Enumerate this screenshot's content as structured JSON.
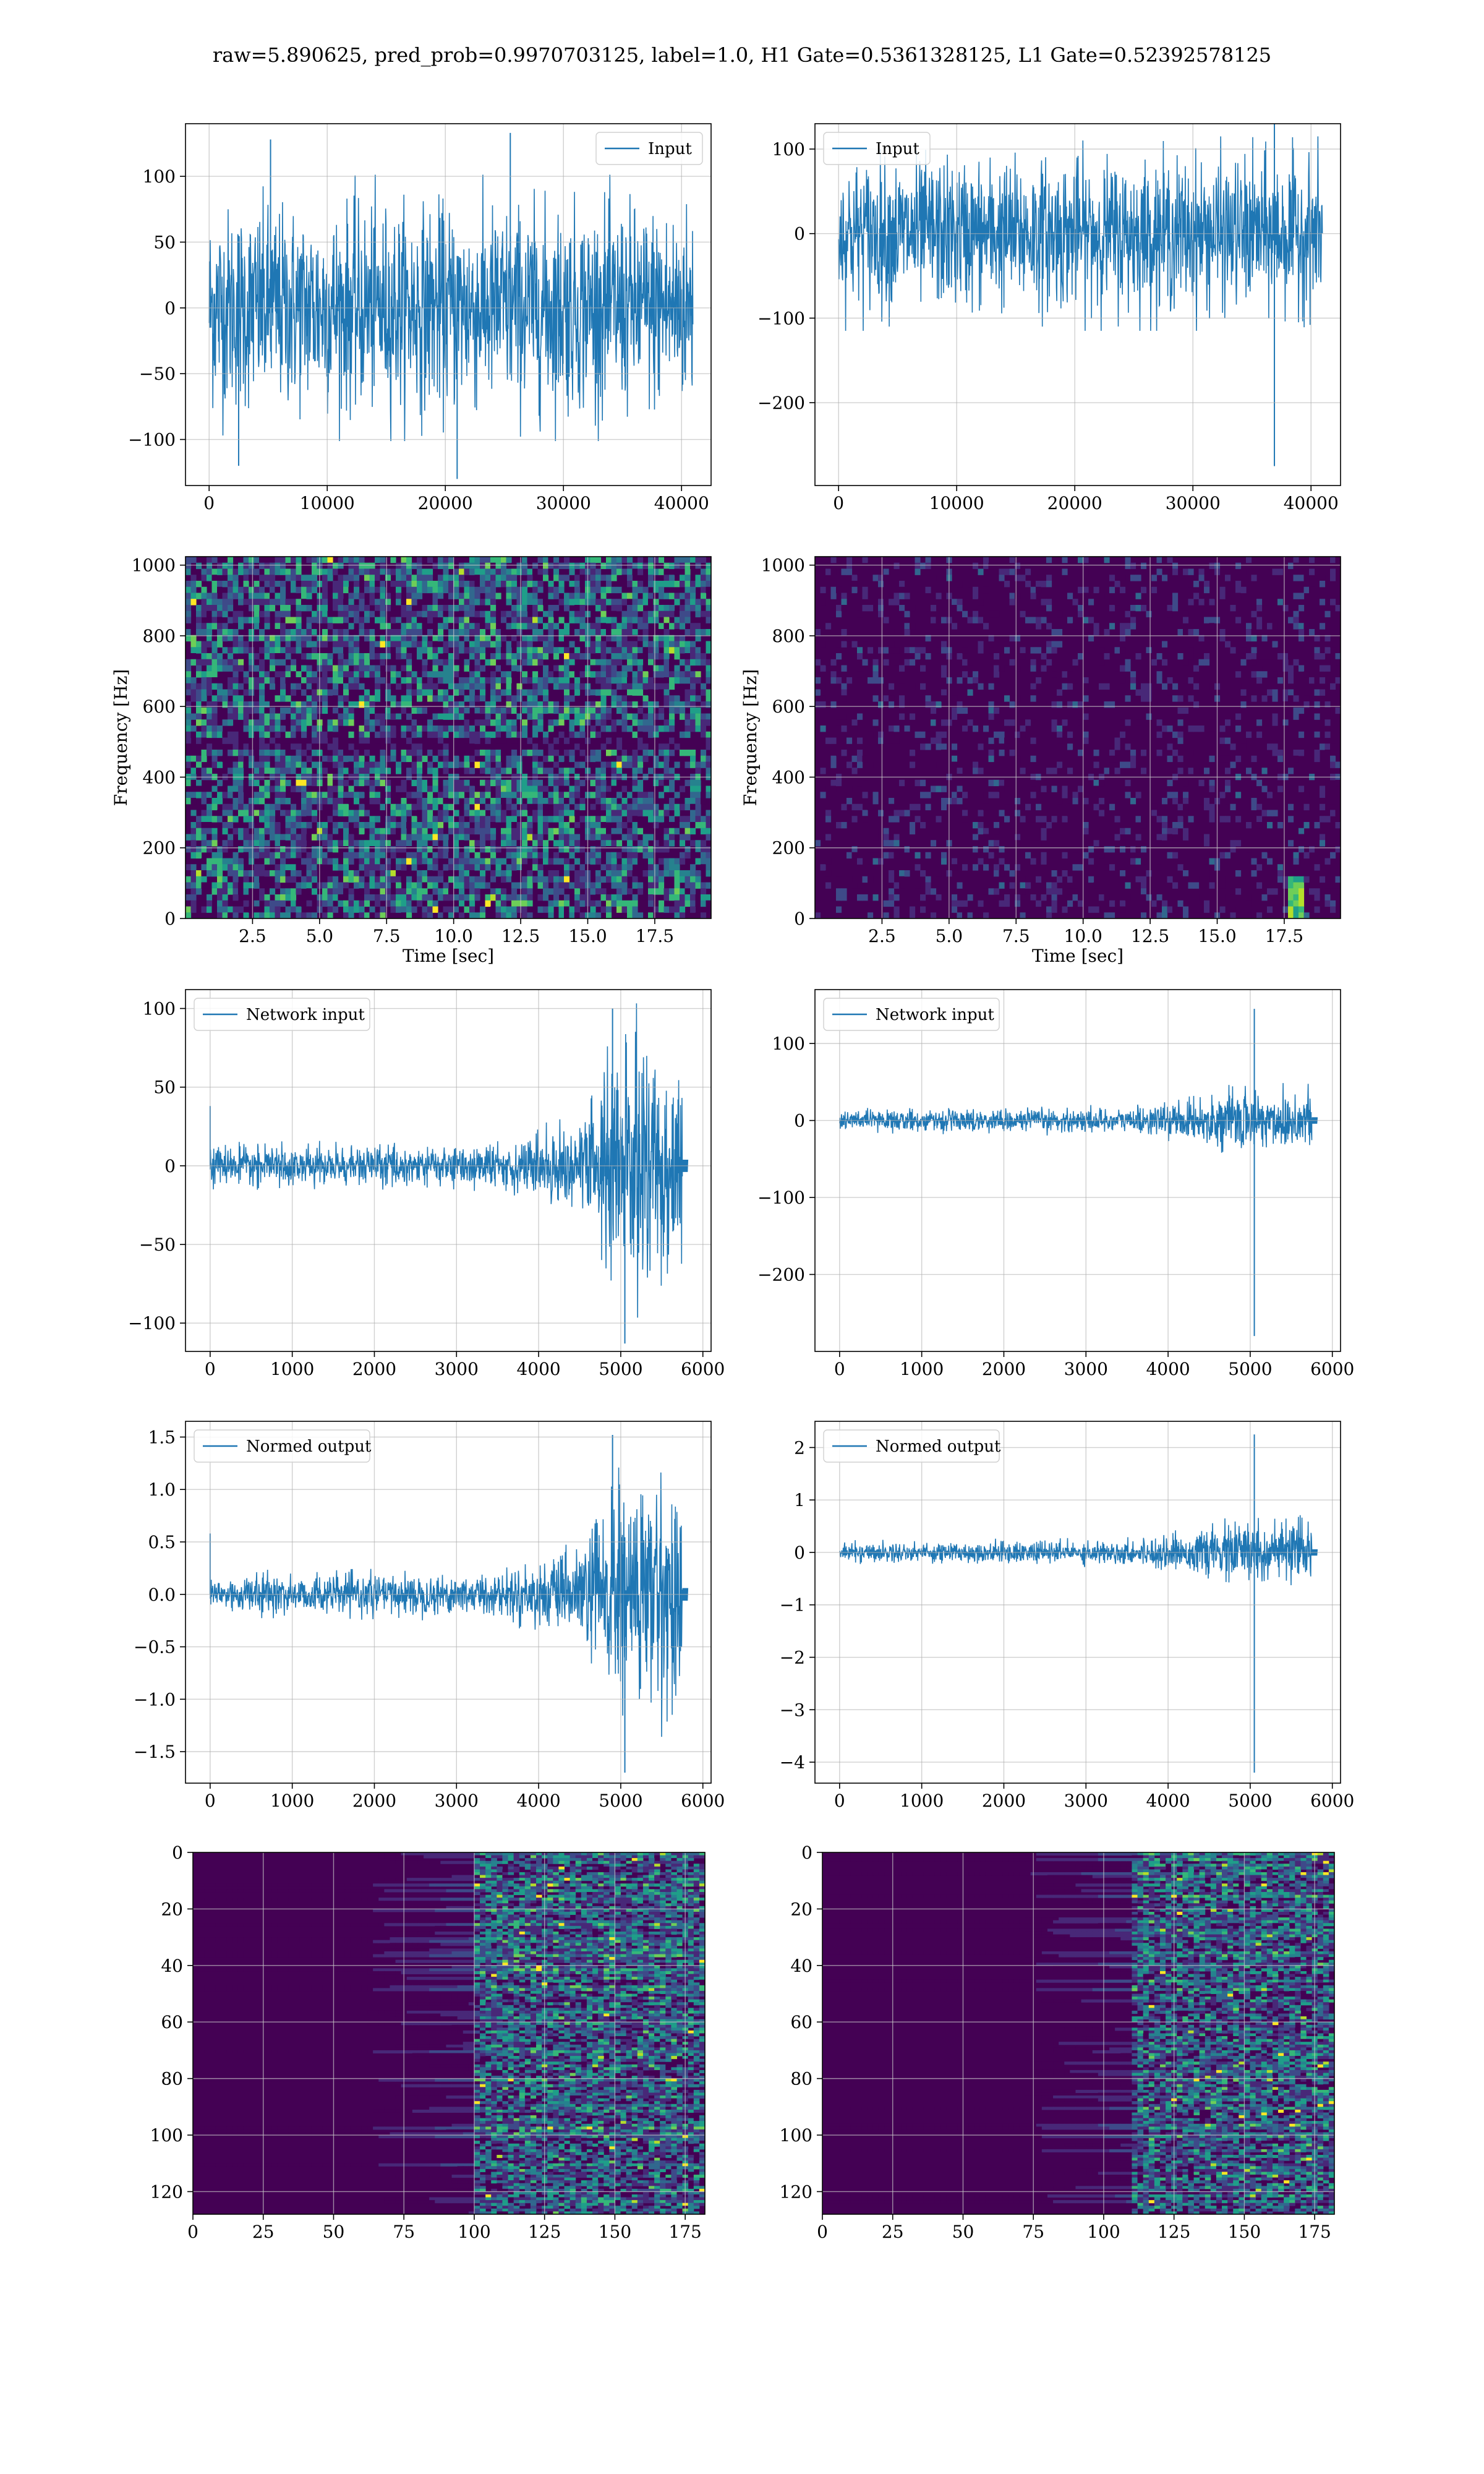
{
  "figure_title": "raw=5.890625, pred_prob=0.9970703125, label=1.0, H1 Gate=0.5361328125, L1 Gate=0.52392578125",
  "colors": {
    "line": "#1f77b4",
    "grid": "#b0b0b0",
    "viridis_low": "#440154",
    "viridis_high": "#fde725"
  },
  "chart_data": [
    {
      "id": "r1c1",
      "type": "line",
      "legend": [
        "Input"
      ],
      "legend_loc": "upper right",
      "xlim": [
        -2000,
        42500
      ],
      "ylim": [
        -135,
        140
      ],
      "xticks": [
        0,
        10000,
        20000,
        30000,
        40000
      ],
      "xticklabels": [
        "0",
        "10000",
        "20000",
        "30000",
        "40000"
      ],
      "yticks": [
        -100,
        -50,
        0,
        50,
        100
      ],
      "yticklabels": [
        "−100",
        "−50",
        "0",
        "50",
        "100"
      ],
      "xlabel": "",
      "ylabel": "",
      "grid": true,
      "signal": {
        "n": 40960,
        "amp": 88,
        "peaks": [
          [
            5200,
            128
          ],
          [
            25500,
            133
          ],
          [
            21000,
            -130
          ],
          [
            2500,
            -120
          ]
        ]
      }
    },
    {
      "id": "r1c2",
      "type": "line",
      "legend": [
        "Input"
      ],
      "legend_loc": "upper left",
      "xlim": [
        -2000,
        42500
      ],
      "ylim": [
        -298,
        130
      ],
      "xticks": [
        0,
        10000,
        20000,
        30000,
        40000
      ],
      "xticklabels": [
        "0",
        "10000",
        "20000",
        "30000",
        "40000"
      ],
      "yticks": [
        -200,
        -100,
        0,
        100
      ],
      "yticklabels": [
        "−200",
        "−100",
        "0",
        "100"
      ],
      "xlabel": "",
      "ylabel": "",
      "grid": true,
      "signal": {
        "n": 40960,
        "amp": 100,
        "peaks": [
          [
            36900,
            140
          ],
          [
            36900,
            -275
          ]
        ]
      }
    },
    {
      "id": "r2c1",
      "type": "heatmap",
      "legend": [],
      "xlim": [
        0,
        19.6
      ],
      "ylim": [
        0,
        1024
      ],
      "xticks": [
        2.5,
        5.0,
        7.5,
        10.0,
        12.5,
        15.0,
        17.5
      ],
      "xticklabels": [
        "2.5",
        "5.0",
        "7.5",
        "10.0",
        "12.5",
        "15.0",
        "17.5"
      ],
      "yticks": [
        0,
        200,
        400,
        600,
        800,
        1000
      ],
      "yticklabels": [
        "0",
        "200",
        "400",
        "600",
        "800",
        "1000"
      ],
      "xlabel": "Time [sec]",
      "ylabel": "Frequency [Hz]",
      "grid": true
    },
    {
      "id": "r2c2",
      "type": "heatmap",
      "legend": [],
      "xlim": [
        0,
        19.6
      ],
      "ylim": [
        0,
        1024
      ],
      "xticks": [
        2.5,
        5.0,
        7.5,
        10.0,
        12.5,
        15.0,
        17.5
      ],
      "xticklabels": [
        "2.5",
        "5.0",
        "7.5",
        "10.0",
        "12.5",
        "15.0",
        "17.5"
      ],
      "yticks": [
        0,
        200,
        400,
        600,
        800,
        1000
      ],
      "yticklabels": [
        "0",
        "200",
        "400",
        "600",
        "800",
        "1000"
      ],
      "xlabel": "Time [sec]",
      "ylabel": "Frequency [Hz]",
      "grid": true,
      "feature": {
        "time": 17.8,
        "freq_range": [
          0,
          120
        ]
      }
    },
    {
      "id": "r3c1",
      "type": "line",
      "legend": [
        "Network input"
      ],
      "legend_loc": "upper left",
      "xlim": [
        -300,
        6100
      ],
      "ylim": [
        -118,
        112
      ],
      "xticks": [
        0,
        1000,
        2000,
        3000,
        4000,
        5000,
        6000
      ],
      "xticklabels": [
        "0",
        "1000",
        "2000",
        "3000",
        "4000",
        "5000",
        "6000"
      ],
      "yticks": [
        -100,
        -50,
        0,
        50,
        100
      ],
      "yticklabels": [
        "−100",
        "−50",
        "0",
        "50",
        "100"
      ],
      "xlabel": "",
      "ylabel": "",
      "grid": true,
      "signal": {
        "n": 5800,
        "amp": 13,
        "end": 5750,
        "envelope": [
          [
            0,
            13
          ],
          [
            3500,
            15
          ],
          [
            4500,
            30
          ],
          [
            4800,
            80
          ],
          [
            5200,
            90
          ],
          [
            5700,
            80
          ]
        ],
        "peaks": [
          [
            0,
            38
          ],
          [
            4900,
            100
          ],
          [
            5050,
            -113
          ]
        ]
      }
    },
    {
      "id": "r3c2",
      "type": "line",
      "legend": [
        "Network input"
      ],
      "legend_loc": "upper left",
      "xlim": [
        -300,
        6100
      ],
      "ylim": [
        -300,
        170
      ],
      "xticks": [
        0,
        1000,
        2000,
        3000,
        4000,
        5000,
        6000
      ],
      "xticklabels": [
        "0",
        "1000",
        "2000",
        "3000",
        "4000",
        "5000",
        "6000"
      ],
      "yticks": [
        -200,
        -100,
        0,
        100
      ],
      "yticklabels": [
        "−200",
        "−100",
        "0",
        "100"
      ],
      "xlabel": "",
      "ylabel": "",
      "grid": true,
      "signal": {
        "n": 5800,
        "amp": 14,
        "end": 5750,
        "envelope": [
          [
            0,
            14
          ],
          [
            3500,
            18
          ],
          [
            4500,
            30
          ],
          [
            4800,
            45
          ],
          [
            5200,
            45
          ],
          [
            5700,
            45
          ]
        ],
        "peaks": [
          [
            5050,
            145
          ],
          [
            5050,
            -280
          ]
        ]
      }
    },
    {
      "id": "r4c1",
      "type": "line",
      "legend": [
        "Normed output"
      ],
      "legend_loc": "upper left",
      "xlim": [
        -300,
        6100
      ],
      "ylim": [
        -1.8,
        1.65
      ],
      "xticks": [
        0,
        1000,
        2000,
        3000,
        4000,
        5000,
        6000
      ],
      "xticklabels": [
        "0",
        "1000",
        "2000",
        "3000",
        "4000",
        "5000",
        "6000"
      ],
      "yticks": [
        -1.5,
        -1.0,
        -0.5,
        0.0,
        0.5,
        1.0,
        1.5
      ],
      "yticklabels": [
        "−1.5",
        "−1.0",
        "−0.5",
        "0.0",
        "0.5",
        "1.0",
        "1.5"
      ],
      "xlabel": "",
      "ylabel": "",
      "grid": true,
      "signal": {
        "n": 5800,
        "amp": 0.2,
        "end": 5750,
        "envelope": [
          [
            0,
            0.2
          ],
          [
            3500,
            0.22
          ],
          [
            4500,
            0.45
          ],
          [
            4800,
            1.15
          ],
          [
            5200,
            1.3
          ],
          [
            5700,
            1.1
          ]
        ],
        "peaks": [
          [
            0,
            0.58
          ],
          [
            4900,
            1.52
          ],
          [
            5050,
            -1.7
          ]
        ]
      }
    },
    {
      "id": "r4c2",
      "type": "line",
      "legend": [
        "Normed output"
      ],
      "legend_loc": "upper left",
      "xlim": [
        -300,
        6100
      ],
      "ylim": [
        -4.4,
        2.5
      ],
      "xticks": [
        0,
        1000,
        2000,
        3000,
        4000,
        5000,
        6000
      ],
      "xticklabels": [
        "0",
        "1000",
        "2000",
        "3000",
        "4000",
        "5000",
        "6000"
      ],
      "yticks": [
        -4,
        -3,
        -2,
        -1,
        0,
        1,
        2
      ],
      "yticklabels": [
        "−4",
        "−3",
        "−2",
        "−1",
        "0",
        "1",
        "2"
      ],
      "xlabel": "",
      "ylabel": "",
      "grid": true,
      "signal": {
        "n": 5800,
        "amp": 0.2,
        "end": 5750,
        "envelope": [
          [
            0,
            0.2
          ],
          [
            3500,
            0.25
          ],
          [
            4500,
            0.45
          ],
          [
            4800,
            0.7
          ],
          [
            5200,
            0.7
          ],
          [
            5700,
            0.6
          ]
        ],
        "peaks": [
          [
            5050,
            2.25
          ],
          [
            5050,
            -4.2
          ]
        ]
      }
    },
    {
      "id": "r5c1",
      "type": "heatmap",
      "legend": [],
      "xlim": [
        0,
        182
      ],
      "ylim": [
        0,
        128
      ],
      "y_inverted": true,
      "xticks": [
        0,
        25,
        50,
        75,
        100,
        125,
        150,
        175
      ],
      "xticklabels": [
        "0",
        "25",
        "50",
        "75",
        "100",
        "125",
        "150",
        "175"
      ],
      "yticks": [
        0,
        20,
        40,
        60,
        80,
        100,
        120
      ],
      "yticklabels": [
        "0",
        "20",
        "40",
        "60",
        "80",
        "100",
        "120"
      ],
      "xlabel": "",
      "ylabel": "",
      "grid": true,
      "onset_column": 100
    },
    {
      "id": "r5c2",
      "type": "heatmap",
      "legend": [],
      "xlim": [
        0,
        182
      ],
      "ylim": [
        0,
        128
      ],
      "y_inverted": true,
      "xticks": [
        0,
        25,
        50,
        75,
        100,
        125,
        150,
        175
      ],
      "xticklabels": [
        "0",
        "25",
        "50",
        "75",
        "100",
        "125",
        "150",
        "175"
      ],
      "yticks": [
        0,
        20,
        40,
        60,
        80,
        100,
        120
      ],
      "yticklabels": [
        "0",
        "20",
        "40",
        "60",
        "80",
        "100",
        "120"
      ],
      "xlabel": "",
      "ylabel": "",
      "grid": true,
      "onset_column": 110
    }
  ]
}
